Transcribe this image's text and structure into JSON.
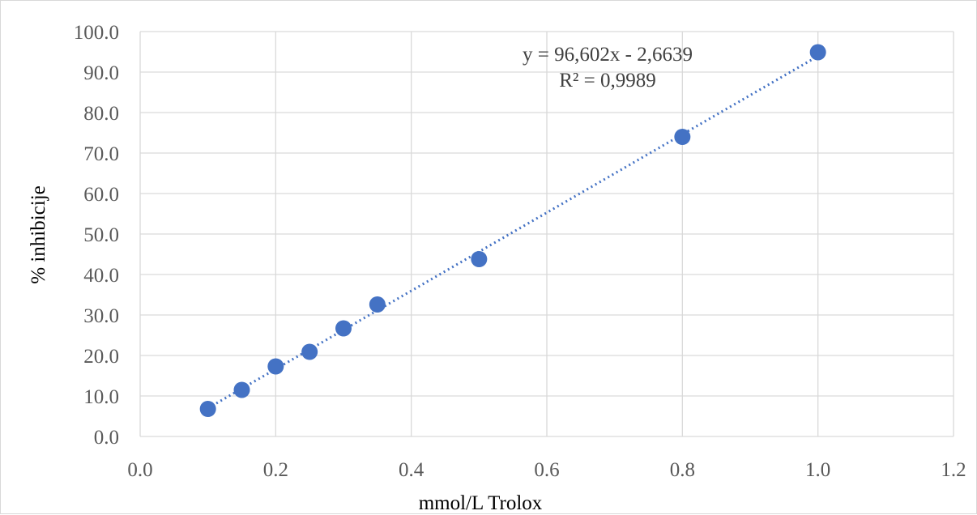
{
  "chart_data": {
    "type": "scatter",
    "xlabel": "mmol/L Trolox",
    "ylabel": "% inhibicije",
    "xlim": [
      0.0,
      1.2
    ],
    "ylim": [
      0.0,
      100.0
    ],
    "x_ticks": [
      "0.0",
      "0.2",
      "0.4",
      "0.6",
      "0.8",
      "1.0",
      "1.2"
    ],
    "y_ticks": [
      "0.0",
      "10.0",
      "20.0",
      "30.0",
      "40.0",
      "50.0",
      "60.0",
      "70.0",
      "80.0",
      "90.0",
      "100.0"
    ],
    "grid": true,
    "series": [
      {
        "x": [
          0.1,
          0.15,
          0.2,
          0.25,
          0.3,
          0.35,
          0.5,
          0.8,
          1.0
        ],
        "y": [
          6.8,
          11.5,
          17.3,
          20.9,
          26.7,
          32.6,
          43.8,
          74.0,
          94.9
        ],
        "color": "#4472C4"
      }
    ],
    "trendline": {
      "type": "linear",
      "slope": 96.602,
      "intercept": -2.6639,
      "x_range": [
        0.1,
        1.0
      ],
      "equation_label": "y = 96,602x - 2,6639",
      "r2_label": "R² = 0,9989",
      "style": "dotted",
      "color": "#4472C4"
    }
  }
}
